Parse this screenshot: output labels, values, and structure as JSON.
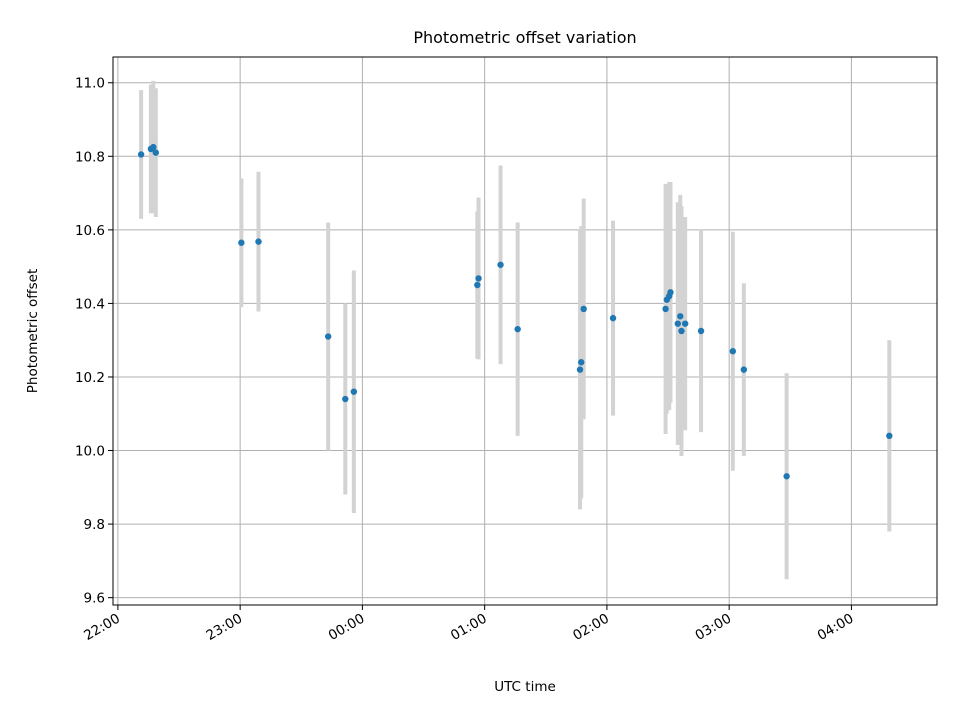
{
  "chart_data": {
    "type": "scatter",
    "title": "Photometric offset variation",
    "xlabel": "UTC time",
    "ylabel": "Photometric offset",
    "x_unit": "hours since 22:00 UTC",
    "xlim": [
      -0.04,
      6.7
    ],
    "ylim": [
      9.58,
      11.07
    ],
    "grid": true,
    "x_ticks": [
      {
        "value": 0,
        "label": "22:00"
      },
      {
        "value": 1,
        "label": "23:00"
      },
      {
        "value": 2,
        "label": "00:00"
      },
      {
        "value": 3,
        "label": "01:00"
      },
      {
        "value": 4,
        "label": "02:00"
      },
      {
        "value": 5,
        "label": "03:00"
      },
      {
        "value": 6,
        "label": "04:00"
      }
    ],
    "y_ticks": [
      {
        "value": 9.6,
        "label": "9.6"
      },
      {
        "value": 9.8,
        "label": "9.8"
      },
      {
        "value": 10.0,
        "label": "10.0"
      },
      {
        "value": 10.2,
        "label": "10.2"
      },
      {
        "value": 10.4,
        "label": "10.4"
      },
      {
        "value": 10.6,
        "label": "10.6"
      },
      {
        "value": 10.8,
        "label": "10.8"
      },
      {
        "value": 11.0,
        "label": "11.0"
      }
    ],
    "points": [
      {
        "x": 0.19,
        "y": 10.805,
        "err": 0.175
      },
      {
        "x": 0.27,
        "y": 10.82,
        "err": 0.175
      },
      {
        "x": 0.29,
        "y": 10.825,
        "err": 0.18
      },
      {
        "x": 0.31,
        "y": 10.81,
        "err": 0.175
      },
      {
        "x": 1.01,
        "y": 10.565,
        "err": 0.175
      },
      {
        "x": 1.15,
        "y": 10.568,
        "err": 0.19
      },
      {
        "x": 1.72,
        "y": 10.31,
        "err": 0.31
      },
      {
        "x": 1.86,
        "y": 10.14,
        "err": 0.26
      },
      {
        "x": 1.93,
        "y": 10.16,
        "err": 0.33
      },
      {
        "x": 2.94,
        "y": 10.45,
        "err": 0.2
      },
      {
        "x": 2.95,
        "y": 10.468,
        "err": 0.22
      },
      {
        "x": 3.13,
        "y": 10.505,
        "err": 0.27
      },
      {
        "x": 3.27,
        "y": 10.33,
        "err": 0.29
      },
      {
        "x": 3.78,
        "y": 10.22,
        "err": 0.38
      },
      {
        "x": 3.79,
        "y": 10.24,
        "err": 0.37
      },
      {
        "x": 3.81,
        "y": 10.385,
        "err": 0.3
      },
      {
        "x": 4.05,
        "y": 10.36,
        "err": 0.265
      },
      {
        "x": 4.48,
        "y": 10.385,
        "err": 0.34
      },
      {
        "x": 4.49,
        "y": 10.41,
        "err": 0.31
      },
      {
        "x": 4.51,
        "y": 10.42,
        "err": 0.31
      },
      {
        "x": 4.52,
        "y": 10.43,
        "err": 0.3
      },
      {
        "x": 4.58,
        "y": 10.345,
        "err": 0.33
      },
      {
        "x": 4.6,
        "y": 10.365,
        "err": 0.33
      },
      {
        "x": 4.61,
        "y": 10.325,
        "err": 0.34
      },
      {
        "x": 4.64,
        "y": 10.345,
        "err": 0.29
      },
      {
        "x": 4.77,
        "y": 10.325,
        "err": 0.275
      },
      {
        "x": 5.03,
        "y": 10.27,
        "err": 0.325
      },
      {
        "x": 5.12,
        "y": 10.22,
        "err": 0.235
      },
      {
        "x": 5.47,
        "y": 9.93,
        "err": 0.28
      },
      {
        "x": 6.31,
        "y": 10.04,
        "err": 0.26
      }
    ]
  }
}
